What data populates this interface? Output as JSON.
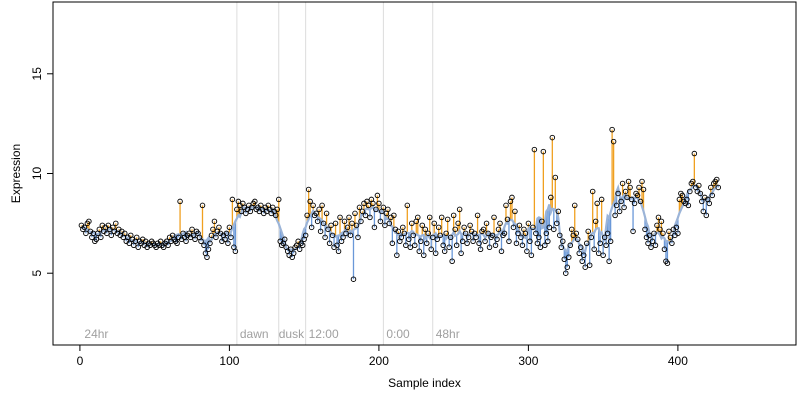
{
  "chart_data": {
    "type": "scatter",
    "title": "",
    "xlabel": "Sample index",
    "ylabel": "Expression",
    "xlim": [
      -18,
      479
    ],
    "ylim": [
      1.4,
      18.6
    ],
    "xticks": [
      0,
      100,
      200,
      300,
      400
    ],
    "yticks": [
      5,
      10,
      15
    ],
    "grid": false,
    "colors": {
      "above": "#f0a020",
      "below": "#6a98d8",
      "trend": "#9bb4d8",
      "divider": "#dcdcdc",
      "annotation": "#a0a0a0"
    },
    "dividers": [
      105,
      133,
      151,
      203,
      236
    ],
    "annotations": [
      {
        "x": 3,
        "label": "24hr"
      },
      {
        "x": 107,
        "label": "dawn"
      },
      {
        "x": 133,
        "label": "dusk"
      },
      {
        "x": 153,
        "label": "12:00"
      },
      {
        "x": 205,
        "label": "0:00"
      },
      {
        "x": 238,
        "label": "48hr"
      }
    ],
    "series": [
      {
        "values": [
          7.4,
          7.2,
          7.3,
          7.0,
          7.5,
          7.6,
          7.1,
          6.8,
          7.0,
          6.6,
          6.7,
          7.0,
          7.2,
          6.8,
          7.4,
          7.1,
          7.3,
          7.0,
          7.4,
          7.2,
          6.9,
          7.3,
          7.1,
          7.5,
          7.0,
          7.2,
          6.9,
          7.1,
          6.8,
          7.0,
          6.6,
          6.8,
          6.5,
          6.9,
          6.7,
          6.4,
          6.6,
          6.8,
          6.3,
          6.6,
          6.5,
          6.7,
          6.4,
          6.6,
          6.3,
          6.5,
          6.4,
          6.6,
          6.5,
          6.4,
          6.3,
          6.5,
          6.4,
          6.6,
          6.4,
          6.3,
          6.5,
          6.6,
          6.4,
          6.8,
          6.6,
          6.9,
          6.7,
          6.6,
          6.5,
          6.8,
          8.6,
          6.7,
          7.0,
          6.8,
          6.6,
          6.9,
          7.0,
          6.8,
          7.2,
          6.9,
          6.7,
          7.1,
          7.0,
          6.8,
          6.6,
          8.4,
          6.4,
          6.0,
          5.8,
          6.2,
          6.5,
          6.9,
          7.2,
          7.6,
          6.8,
          7.1,
          7.3,
          7.0,
          6.6,
          6.9,
          6.7,
          7.0,
          6.5,
          7.3,
          6.8,
          8.7,
          6.3,
          6.1,
          8.2,
          8.6,
          8.4,
          8.1,
          8.5,
          8.3,
          8.0,
          8.2,
          8.4,
          8.1,
          8.3,
          8.5,
          8.6,
          8.2,
          8.3,
          8.1,
          8.4,
          8.2,
          8.0,
          8.3,
          8.1,
          8.4,
          8.2,
          8.0,
          8.3,
          8.1,
          7.9,
          8.2,
          8.7,
          6.6,
          6.4,
          6.5,
          6.7,
          6.3,
          6.1,
          5.9,
          6.2,
          5.8,
          6.0,
          6.3,
          6.4,
          6.6,
          6.2,
          6.5,
          6.4,
          6.7,
          6.9,
          7.9,
          9.2,
          8.6,
          7.3,
          8.4,
          7.9,
          8.0,
          7.6,
          8.2,
          7.1,
          8.4,
          7.5,
          6.8,
          8.0,
          7.2,
          6.5,
          7.4,
          6.9,
          6.3,
          7.5,
          6.4,
          6.1,
          7.8,
          6.6,
          6.8,
          7.6,
          7.0,
          7.3,
          7.8,
          6.9,
          7.5,
          4.7,
          8.0,
          7.4,
          6.8,
          8.3,
          7.6,
          8.1,
          8.5,
          7.9,
          8.6,
          8.4,
          7.8,
          8.7,
          8.5,
          7.3,
          8.2,
          8.9,
          8.5,
          7.6,
          8.1,
          8.3,
          7.4,
          8.0,
          8.2,
          7.5,
          7.8,
          6.5,
          7.9,
          7.2,
          5.9,
          7.1,
          6.6,
          6.8,
          7.3,
          7.0,
          6.4,
          8.4,
          6.7,
          6.3,
          7.5,
          6.9,
          6.4,
          7.6,
          7.8,
          6.1,
          6.6,
          7.4,
          5.9,
          7.2,
          6.5,
          7.0,
          7.8,
          6.2,
          6.8,
          7.5,
          6.0,
          6.7,
          7.3,
          6.9,
          7.8,
          6.4,
          6.1,
          7.0,
          7.7,
          6.3,
          6.8,
          5.6,
          7.9,
          7.2,
          6.4,
          7.5,
          8.2,
          6.0,
          6.6,
          7.3,
          7.0,
          6.5,
          6.8,
          7.4,
          7.1,
          6.6,
          7.0,
          6.8,
          7.9,
          6.5,
          6.2,
          7.1,
          7.2,
          6.6,
          7.5,
          7.0,
          6.3,
          6.8,
          6.9,
          7.8,
          6.4,
          6.7,
          7.2,
          7.5,
          6.1,
          6.9,
          7.0,
          8.4,
          7.7,
          6.6,
          8.6,
          8.8,
          7.3,
          8.1,
          6.5,
          7.0,
          7.4,
          6.8,
          6.4,
          7.2,
          7.0,
          6.1,
          7.5,
          6.6,
          5.9,
          7.3,
          11.2,
          7.0,
          6.5,
          6.8,
          6.3,
          7.6,
          11.1,
          6.4,
          7.0,
          6.6,
          7.3,
          8.8,
          11.8,
          7.2,
          9.8,
          7.5,
          8.1,
          6.9,
          6.3,
          6.6,
          5.7,
          5.0,
          5.3,
          5.8,
          6.4,
          7.2,
          6.9,
          8.4,
          7.0,
          6.7,
          6.0,
          6.3,
          5.6,
          5.9,
          5.3,
          6.5,
          7.1,
          5.4,
          6.8,
          9.1,
          6.2,
          7.6,
          8.5,
          6.0,
          6.5,
          8.7,
          5.9,
          6.8,
          6.4,
          7.0,
          5.6,
          6.6,
          12.2,
          11.6,
          7.9,
          8.4,
          9.0,
          8.1,
          8.6,
          9.5,
          8.3,
          9.1,
          8.8,
          9.6,
          9.3,
          8.7,
          7.1,
          8.5,
          9.0,
          8.9,
          9.3,
          8.6,
          9.6,
          9.2,
          7.2,
          6.8,
          6.5,
          6.9,
          6.3,
          6.6,
          7.0,
          6.4,
          7.4,
          7.8,
          7.2,
          7.6,
          7.0,
          6.2,
          5.6,
          5.5,
          7.1,
          6.8,
          6.5,
          7.2,
          6.9,
          7.3,
          7.0,
          8.7,
          9.0,
          8.9,
          8.6,
          8.5,
          8.7,
          8.4,
          9.1,
          9.5,
          9.6,
          11.0,
          9.3,
          9.1,
          9.4,
          9.0,
          8.6,
          8.1,
          8.8,
          7.9,
          8.7,
          8.5,
          9.3,
          8.9,
          9.5,
          9.6,
          9.7,
          9.3
        ]
      }
    ]
  }
}
